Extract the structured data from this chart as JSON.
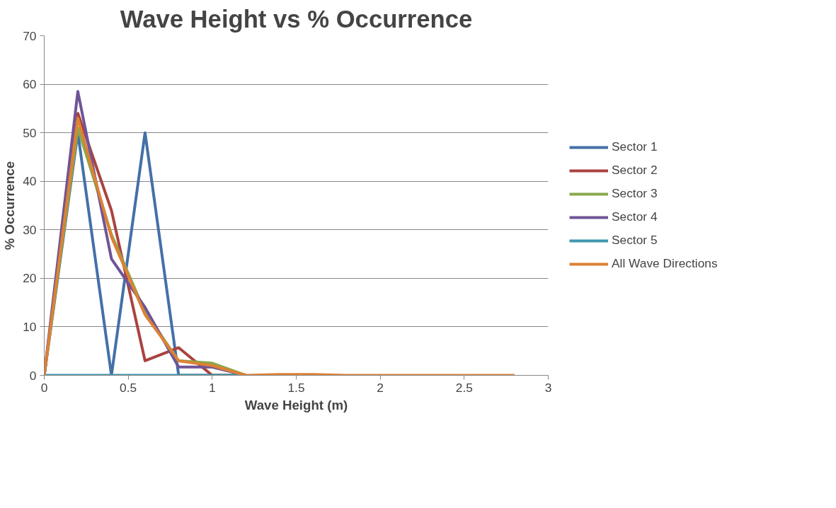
{
  "chart_data": {
    "type": "line",
    "title": "Wave Height vs % Occurrence",
    "xlabel": "Wave Height (m)",
    "ylabel": "% Occurrence",
    "x": [
      0,
      0.2,
      0.4,
      0.6,
      0.8,
      1.0,
      1.2,
      1.4,
      1.6,
      1.8,
      2.0,
      2.2,
      2.4,
      2.6,
      2.8
    ],
    "xlim": [
      0,
      3
    ],
    "xticks": [
      0,
      0.5,
      1,
      1.5,
      2,
      2.5,
      3
    ],
    "ylim": [
      0,
      70
    ],
    "yticks": [
      0,
      10,
      20,
      30,
      40,
      50,
      60,
      70
    ],
    "grid": "y",
    "legend": "right",
    "marker": "none",
    "series": [
      {
        "name": "Sector 1",
        "color": "#4470a8",
        "values": [
          0,
          50,
          0,
          50,
          0,
          0,
          0,
          null,
          null,
          null,
          null,
          null,
          null,
          null,
          null
        ]
      },
      {
        "name": "Sector 2",
        "color": "#aa4340",
        "values": [
          0,
          54,
          34,
          3,
          5.7,
          0,
          0,
          null,
          null,
          null,
          null,
          null,
          null,
          null,
          null
        ]
      },
      {
        "name": "Sector 3",
        "color": "#88a94c",
        "values": [
          0,
          51,
          29,
          13,
          3,
          2.5,
          0,
          null,
          null,
          null,
          null,
          null,
          null,
          null,
          null
        ]
      },
      {
        "name": "Sector 4",
        "color": "#6f5596",
        "values": [
          0,
          58.5,
          24,
          14,
          1.7,
          1.7,
          0,
          null,
          null,
          null,
          null,
          null,
          null,
          null,
          null
        ]
      },
      {
        "name": "Sector 5",
        "color": "#3f97ad",
        "values": [
          0,
          0,
          0,
          0,
          0,
          0,
          0,
          null,
          null,
          null,
          null,
          null,
          null,
          null,
          null
        ]
      },
      {
        "name": "All Wave Directions",
        "color": "#de8133",
        "values": [
          0,
          53,
          28.5,
          12.5,
          3,
          2,
          0,
          0.2,
          0.2,
          0,
          0,
          0,
          0,
          0,
          0
        ]
      }
    ]
  }
}
